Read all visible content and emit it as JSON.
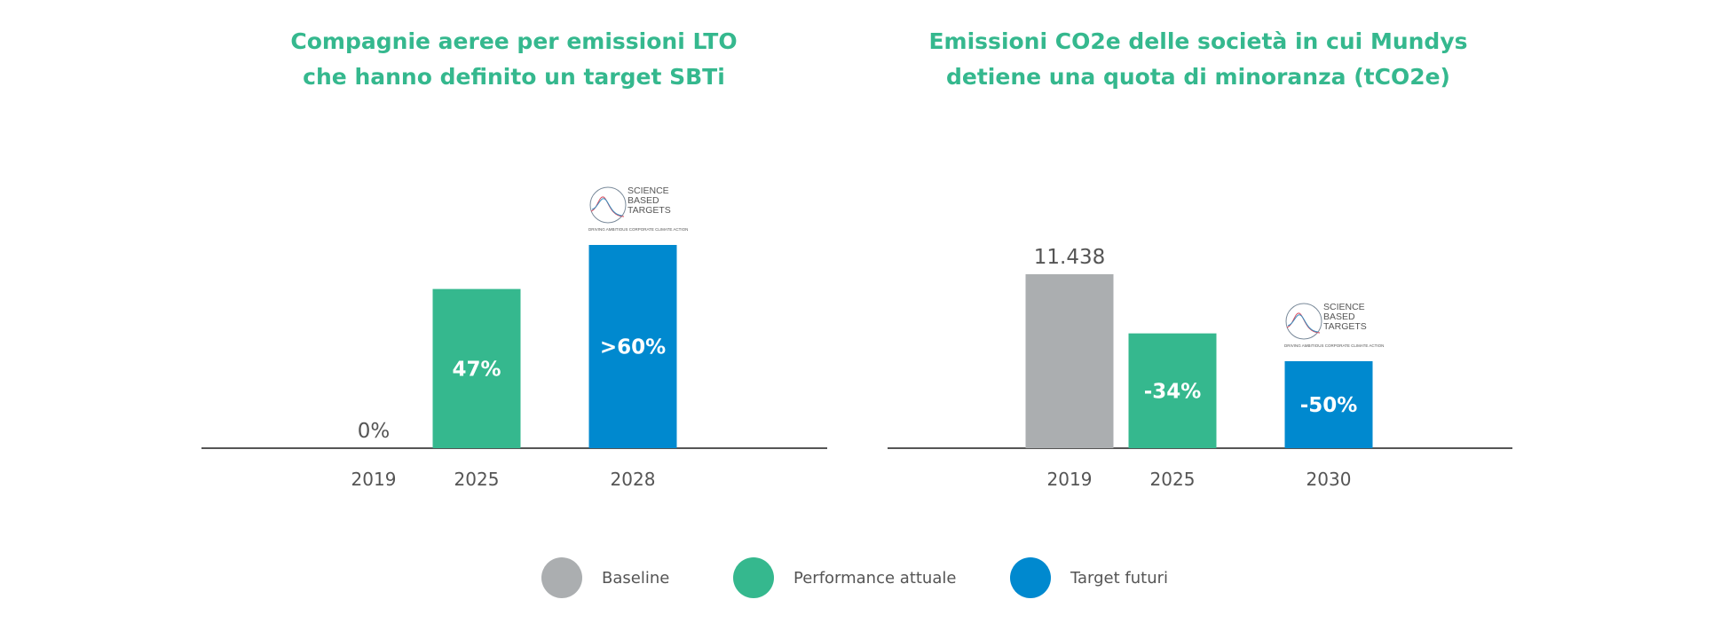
{
  "colors": {
    "baseline": "#abaeb0",
    "current": "#35b88e",
    "target": "#0089cf",
    "axis": "#555555",
    "title": "#35b88e"
  },
  "chart_data": [
    {
      "type": "bar",
      "title": [
        "Compagnie aeree per emissioni LTO",
        "che hanno definito un target SBTi"
      ],
      "categories": [
        "2019",
        "2025",
        "2028"
      ],
      "values": [
        0,
        47,
        60
      ],
      "data_labels": [
        "0%",
        "47%",
        ">60%"
      ],
      "series_kind": [
        "baseline",
        "current",
        "target"
      ],
      "ylim": [
        0,
        60
      ],
      "grid": false,
      "unit": "%",
      "logo_on": "2028"
    },
    {
      "type": "bar",
      "title": [
        "Emissioni CO2e delle società in cui Mundys",
        "detiene una quota di minoranza (tCO2e)"
      ],
      "categories": [
        "2019",
        "2025",
        "2030"
      ],
      "values": [
        11438,
        7549,
        5719
      ],
      "data_labels": [
        "11.438",
        "-34%",
        "-50%"
      ],
      "series_kind": [
        "baseline",
        "current",
        "target"
      ],
      "ylim": [
        0,
        11438
      ],
      "grid": false,
      "logo_on": "2030"
    }
  ],
  "legend": {
    "placement": "bottom",
    "items": [
      {
        "label": "Baseline",
        "kind": "baseline"
      },
      {
        "label": "Performance attuale",
        "kind": "current"
      },
      {
        "label": "Target futuri",
        "kind": "target"
      }
    ]
  },
  "logo": {
    "lines": [
      "SCIENCE",
      "BASED",
      "TARGETS"
    ],
    "tagline": "DRIVING AMBITIOUS CORPORATE CLIMATE ACTION"
  }
}
